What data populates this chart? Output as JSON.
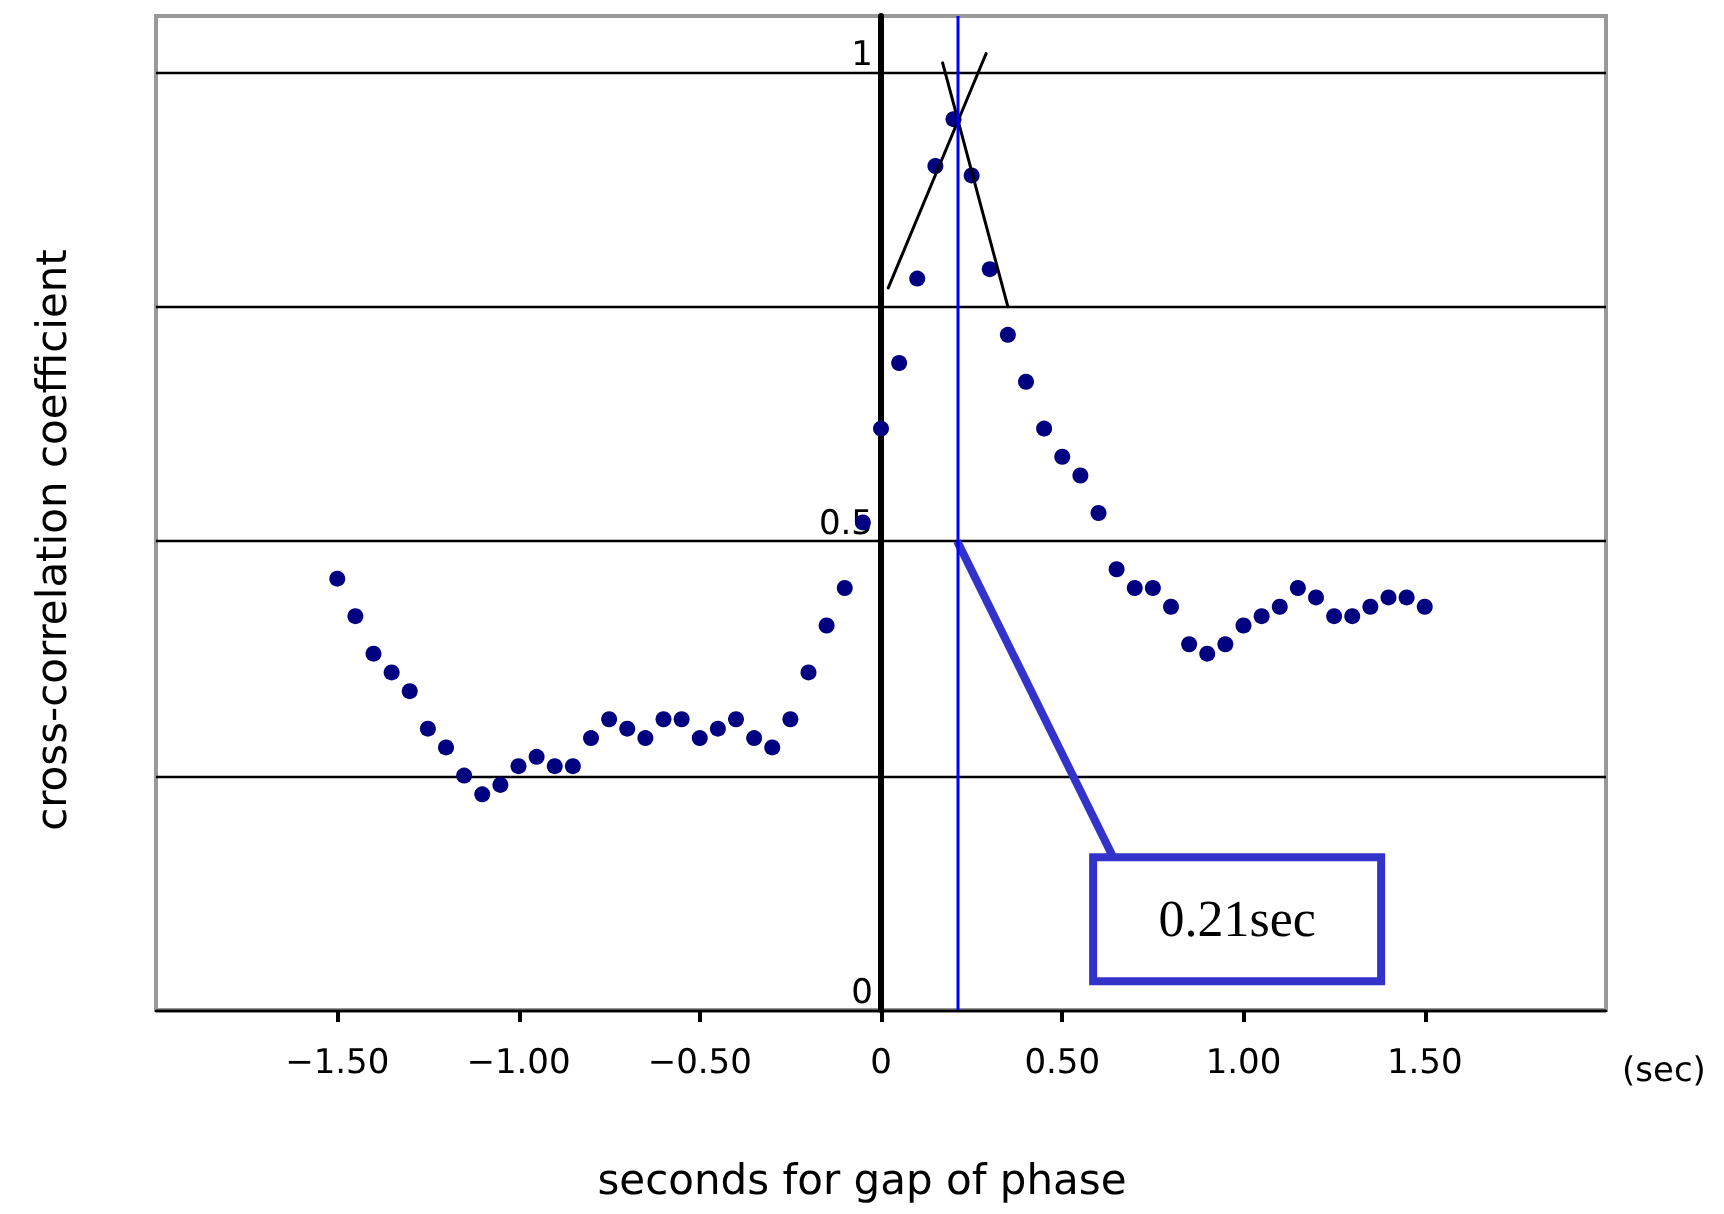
{
  "chart_data": {
    "type": "scatter",
    "xlabel": "seconds for gap of phase",
    "ylabel": "cross-correlation coefficient",
    "x": [
      -1.5,
      -1.45,
      -1.4,
      -1.35,
      -1.3,
      -1.25,
      -1.2,
      -1.15,
      -1.1,
      -1.05,
      -1.0,
      -0.95,
      -0.9,
      -0.85,
      -0.8,
      -0.75,
      -0.7,
      -0.65,
      -0.6,
      -0.55,
      -0.5,
      -0.45,
      -0.4,
      -0.35,
      -0.3,
      -0.25,
      -0.2,
      -0.15,
      -0.1,
      -0.05,
      0,
      0.05,
      0.1,
      0.15,
      0.2,
      0.25,
      0.3,
      0.35,
      0.4,
      0.45,
      0.5,
      0.55,
      0.6,
      0.65,
      0.7,
      0.75,
      0.8,
      0.85,
      0.9,
      0.95,
      1.0,
      1.05,
      1.1,
      1.15,
      1.2,
      1.25,
      1.3,
      1.35,
      1.4,
      1.45,
      1.5
    ],
    "series": [
      {
        "color": "#000080",
        "values": [
          0.46,
          0.42,
          0.38,
          0.36,
          0.34,
          0.3,
          0.28,
          0.25,
          0.23,
          0.24,
          0.26,
          0.27,
          0.26,
          0.26,
          0.29,
          0.31,
          0.3,
          0.29,
          0.31,
          0.31,
          0.29,
          0.3,
          0.31,
          0.29,
          0.28,
          0.31,
          0.36,
          0.41,
          0.45,
          0.52,
          0.62,
          0.69,
          0.78,
          0.9,
          0.95,
          0.89,
          0.79,
          0.72,
          0.67,
          0.62,
          0.59,
          0.57,
          0.53,
          0.47,
          0.45,
          0.45,
          0.43,
          0.39,
          0.38,
          0.39,
          0.41,
          0.42,
          0.43,
          0.45,
          0.44,
          0.42,
          0.42,
          0.43,
          0.44,
          0.44,
          0.43
        ]
      },
      {
        "type": "line",
        "color": "#000000",
        "marker": "none",
        "x": [
          0.02,
          0.29
        ],
        "values": [
          0.77,
          1.02
        ]
      },
      {
        "type": "line",
        "color": "#000000",
        "marker": "none",
        "x": [
          0.17,
          0.35
        ],
        "values": [
          1.01,
          0.75
        ]
      }
    ],
    "xlim": [
      -2,
      2
    ],
    "xticks": [
      {
        "value": -1.5,
        "label": "−1.50"
      },
      {
        "value": -1,
        "label": "−1.00"
      },
      {
        "value": -0.5,
        "label": "−0.50"
      },
      0,
      {
        "value": 0.5,
        "label": "0.50"
      },
      {
        "value": 1,
        "label": "1.00"
      },
      {
        "value": 1.5,
        "label": "1.50"
      }
    ],
    "ylim": [
      0,
      1.06
    ],
    "yticks": [
      0,
      {
        "value": 0.25,
        "label": null
      },
      0.5,
      {
        "value": 0.75,
        "label": null
      },
      1
    ],
    "grid": "y",
    "marker": "circle",
    "ref_lines": [
      {
        "axis": "x",
        "value": 0.21,
        "color": "#0000ff"
      }
    ],
    "annotations": [
      {
        "text": "0.21sec",
        "x": 0.21,
        "y": 0.5
      },
      "(sec)"
    ]
  }
}
